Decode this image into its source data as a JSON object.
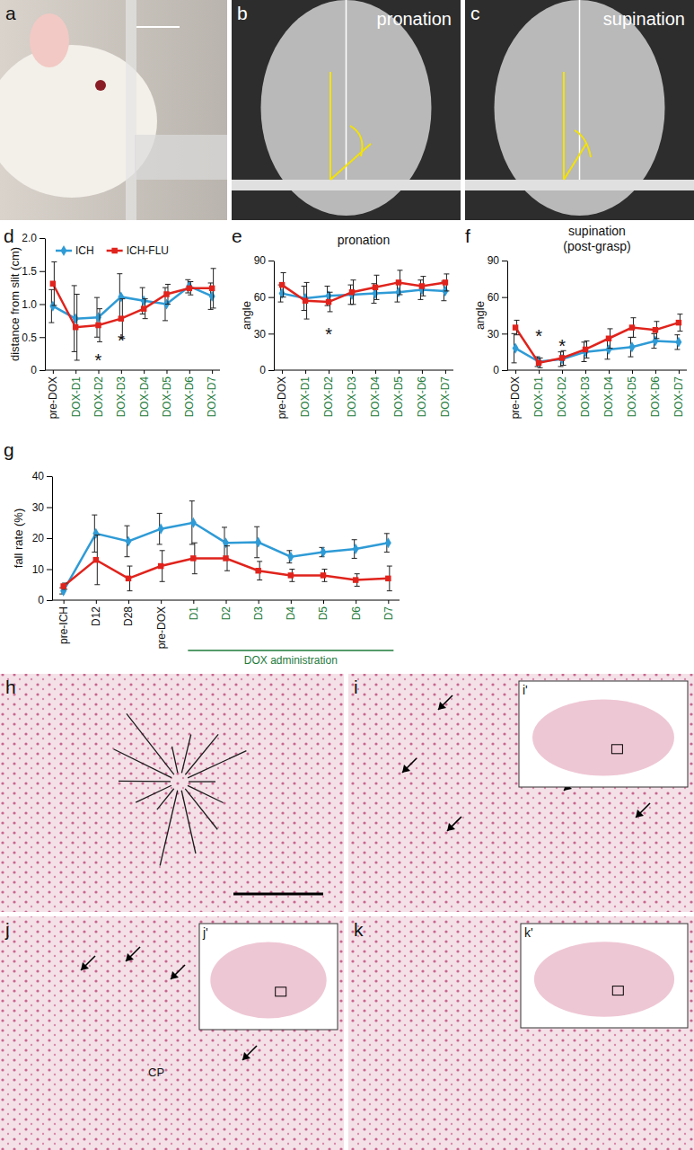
{
  "chart_data": [
    {
      "type": "line",
      "panel_label": "d",
      "ylabel": "distance from slit (cm)",
      "categories": [
        "pre-DOX",
        "DOX-D1",
        "DOX-D2",
        "DOX-D3",
        "DOX-D4",
        "DOX-D5",
        "DOX-D6",
        "DOX-D7"
      ],
      "series": [
        {
          "name": "ICH",
          "color": "#2f9bd6",
          "marker": "diamond",
          "values": [
            0.97,
            0.78,
            0.8,
            1.11,
            1.05,
            1.0,
            1.27,
            1.12
          ],
          "errors": [
            0.25,
            0.5,
            0.3,
            0.35,
            0.2,
            0.25,
            0.1,
            0.2
          ]
        },
        {
          "name": "ICH-FLU",
          "color": "#e0231c",
          "marker": "square",
          "values": [
            1.31,
            0.65,
            0.68,
            0.78,
            0.93,
            1.15,
            1.24,
            1.24
          ],
          "errors": [
            0.33,
            0.5,
            0.25,
            0.3,
            0.15,
            0.15,
            0.1,
            0.3
          ]
        }
      ],
      "ylim": [
        0,
        2
      ],
      "yticks": [
        0,
        0.5,
        {
          "value": 1,
          "label": "1.0"
        },
        1.5,
        {
          "value": 2,
          "label": "2.0"
        }
      ],
      "legend": "upper left",
      "annotations": [
        {
          "text": "*",
          "x": 2,
          "y": 0.25
        },
        {
          "text": "*",
          "x": 3,
          "y": 0.55
        }
      ]
    },
    {
      "type": "line",
      "panel_label": "e",
      "title": "pronation",
      "ylabel": "angle",
      "categories": [
        "pre-DOX",
        "DOX-D1",
        "DOX-D2",
        "DOX-D3",
        "DOX-D4",
        "DOX-D5",
        "DOX-D6",
        "DOX-D7"
      ],
      "series": [
        {
          "name": "ICH",
          "color": "#2f9bd6",
          "marker": "diamond",
          "values": [
            63,
            59,
            61,
            62,
            63,
            64,
            66,
            65
          ],
          "errors": [
            7,
            10,
            8,
            8,
            8,
            8,
            8,
            8
          ]
        },
        {
          "name": "ICH-FLU",
          "color": "#e0231c",
          "marker": "square",
          "values": [
            70,
            57,
            56,
            64,
            68,
            72,
            69,
            72
          ],
          "errors": [
            10,
            15,
            8,
            10,
            10,
            10,
            8,
            7
          ]
        }
      ],
      "ylim": [
        0,
        90
      ],
      "yticks": [
        0,
        30,
        60,
        90
      ],
      "annotations": [
        {
          "text": "*",
          "x": 2,
          "y": 35
        }
      ]
    },
    {
      "type": "line",
      "panel_label": "f",
      "title": "supination",
      "subtitle": "(post-grasp)",
      "ylabel": "angle",
      "categories": [
        "pre-DOX",
        "DOX-D1",
        "DOX-D2",
        "DOX-D3",
        "DOX-D4",
        "DOX-D5",
        "DOX-D6",
        "DOX-D7"
      ],
      "series": [
        {
          "name": "ICH",
          "color": "#2f9bd6",
          "marker": "diamond",
          "values": [
            18,
            7,
            9,
            15,
            17,
            19,
            24,
            23
          ],
          "errors": [
            12,
            4,
            6,
            8,
            8,
            8,
            6,
            6
          ]
        },
        {
          "name": "ICH-FLU",
          "color": "#e0231c",
          "marker": "square",
          "values": [
            35,
            6,
            10,
            17,
            26,
            35,
            33,
            39
          ],
          "errors": [
            6,
            4,
            6,
            7,
            8,
            8,
            7,
            7
          ]
        }
      ],
      "ylim": [
        0,
        90
      ],
      "yticks": [
        0,
        30,
        60,
        90
      ],
      "annotations": [
        {
          "text": "*",
          "x": 1,
          "y": 33
        },
        {
          "text": "*",
          "x": 2,
          "y": 25
        }
      ]
    },
    {
      "type": "line",
      "panel_label": "g",
      "ylabel": "fall rate (%)",
      "categories": [
        "pre-ICH",
        "D12",
        "D28",
        "pre-DOX",
        "D1",
        "D2",
        "D3",
        "D4",
        "D5",
        "D6",
        "D7"
      ],
      "series": [
        {
          "name": "ICH",
          "color": "#2f9bd6",
          "marker": "diamond",
          "values": [
            3,
            21.5,
            19,
            23,
            25,
            18.5,
            18.7,
            14,
            15.5,
            16.5,
            18.5
          ],
          "errors": [
            1,
            6,
            5,
            5,
            7,
            5,
            5,
            2,
            1.5,
            3,
            3
          ]
        },
        {
          "name": "ICH-FLU",
          "color": "#e0231c",
          "marker": "square",
          "values": [
            4.5,
            13,
            7,
            11,
            13.5,
            13.5,
            9.5,
            8,
            8,
            6.5,
            7
          ],
          "errors": [
            1,
            8,
            4,
            5,
            5,
            4,
            3,
            2,
            2,
            2,
            4
          ]
        }
      ],
      "ylim": [
        0,
        40
      ],
      "yticks": [
        0,
        10,
        20,
        30,
        40
      ],
      "annotations": [
        {
          "text": "DOX administration",
          "from": 4,
          "to": 10
        }
      ]
    }
  ],
  "image_panels": [
    {
      "label": "a"
    },
    {
      "label": "b",
      "text": "pronation"
    },
    {
      "label": "c",
      "text": "supination"
    },
    {
      "label": "h"
    },
    {
      "label": "i",
      "inset_label": "i'"
    },
    {
      "label": "j",
      "inset_label": "j'",
      "text": "CP"
    },
    {
      "label": "k",
      "inset_label": "k'"
    }
  ]
}
